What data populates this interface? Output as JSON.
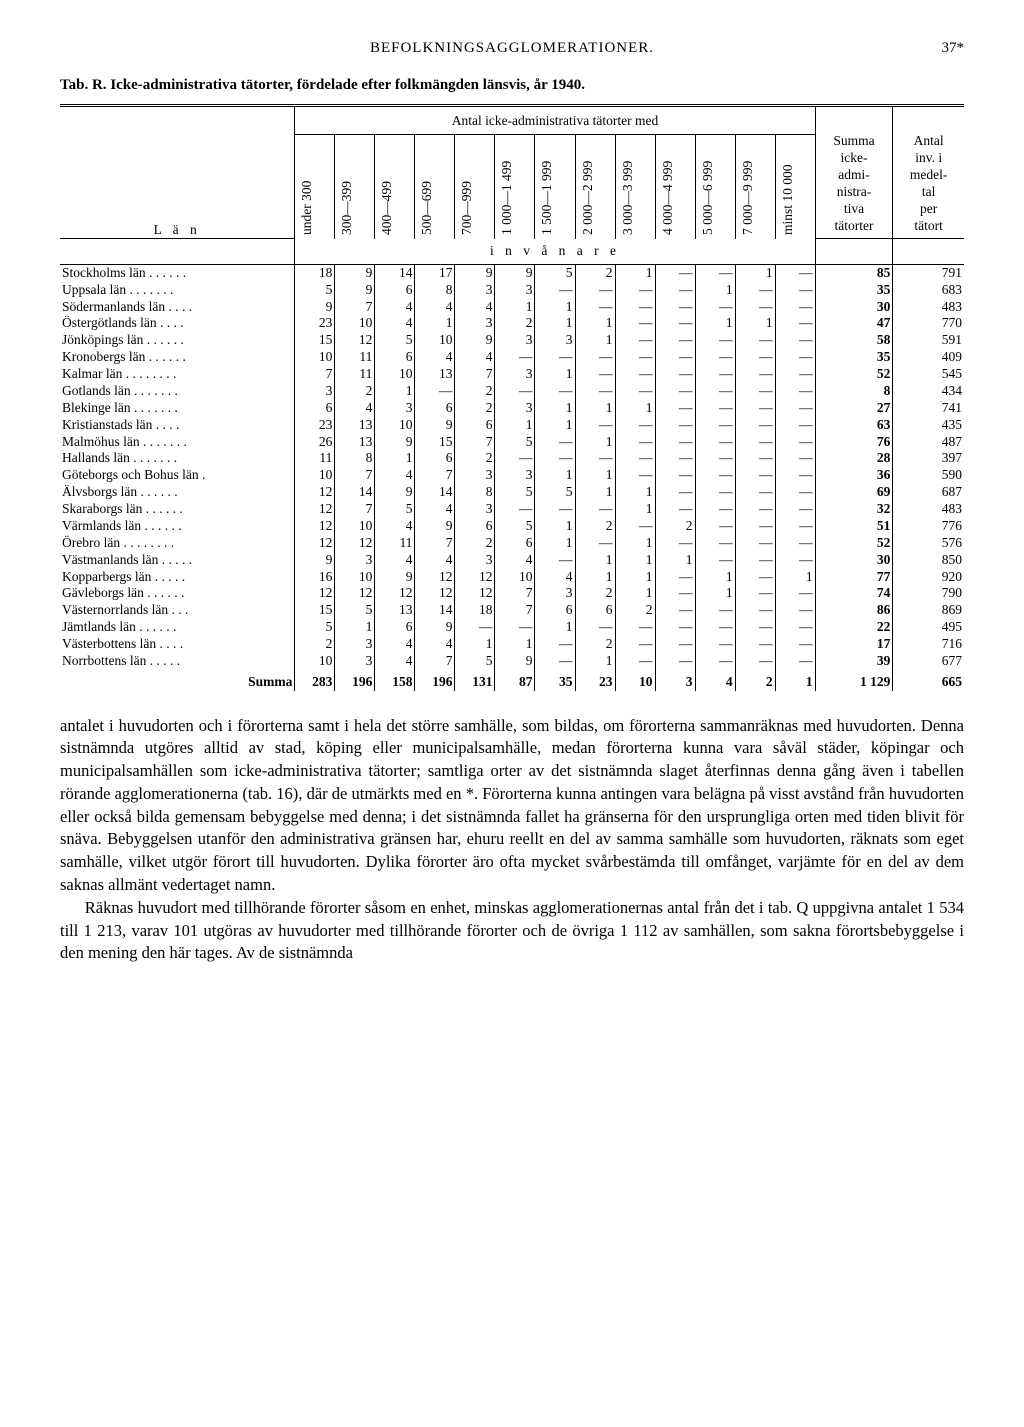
{
  "header": {
    "running_title": "BEFOLKNINGSAGGLOMERATIONER.",
    "page_number": "37*"
  },
  "caption": {
    "label": "Tab. R.",
    "text": "Icke-administrativa tätorter, fördelade efter folkmängden länsvis, år 1940."
  },
  "table": {
    "stub_header": "L ä n",
    "span_header": "Antal icke-administrativa tätorter med",
    "invanare_label": "i n v å n a r e",
    "column_headers": [
      "under 300",
      "300—399",
      "400—499",
      "500—699",
      "700—999",
      "1 000—1 499",
      "1 500—1 999",
      "2 000—2 999",
      "3 000—3 999",
      "4 000—4 999",
      "5 000—6 999",
      "7 000—9 999",
      "minst 10 000"
    ],
    "sum_header_lines": [
      "Summa",
      "icke-",
      "admi-",
      "nistra-",
      "tiva",
      "tätorter"
    ],
    "avg_header_lines": [
      "Antal",
      "inv. i",
      "medel-",
      "tal",
      "per",
      "tätort"
    ],
    "rows": [
      {
        "lan": "Stockholms län",
        "v": [
          "18",
          "9",
          "14",
          "17",
          "9",
          "9",
          "5",
          "2",
          "1",
          "—",
          "—",
          "1",
          "—"
        ],
        "sum": "85",
        "avg": "791"
      },
      {
        "lan": "Uppsala län",
        "v": [
          "5",
          "9",
          "6",
          "8",
          "3",
          "3",
          "—",
          "—",
          "—",
          "—",
          "1",
          "—",
          "—"
        ],
        "sum": "35",
        "avg": "683"
      },
      {
        "lan": "Södermanlands län",
        "v": [
          "9",
          "7",
          "4",
          "4",
          "4",
          "1",
          "1",
          "—",
          "—",
          "—",
          "—",
          "—",
          "—"
        ],
        "sum": "30",
        "avg": "483"
      },
      {
        "lan": "Östergötlands län",
        "v": [
          "23",
          "10",
          "4",
          "1",
          "3",
          "2",
          "1",
          "1",
          "—",
          "—",
          "1",
          "1",
          "—"
        ],
        "sum": "47",
        "avg": "770"
      },
      {
        "lan": "Jönköpings län",
        "v": [
          "15",
          "12",
          "5",
          "10",
          "9",
          "3",
          "3",
          "1",
          "—",
          "—",
          "—",
          "—",
          "—"
        ],
        "sum": "58",
        "avg": "591"
      },
      {
        "lan": "Kronobergs län",
        "v": [
          "10",
          "11",
          "6",
          "4",
          "4",
          "—",
          "—",
          "—",
          "—",
          "—",
          "—",
          "—",
          "—"
        ],
        "sum": "35",
        "avg": "409"
      },
      {
        "lan": "Kalmar län",
        "v": [
          "7",
          "11",
          "10",
          "13",
          "7",
          "3",
          "1",
          "—",
          "—",
          "—",
          "—",
          "—",
          "—"
        ],
        "sum": "52",
        "avg": "545"
      },
      {
        "lan": "Gotlands län",
        "v": [
          "3",
          "2",
          "1",
          "—",
          "2",
          "—",
          "—",
          "—",
          "—",
          "—",
          "—",
          "—",
          "—"
        ],
        "sum": "8",
        "avg": "434"
      },
      {
        "lan": "Blekinge län",
        "v": [
          "6",
          "4",
          "3",
          "6",
          "2",
          "3",
          "1",
          "1",
          "1",
          "—",
          "—",
          "—",
          "—"
        ],
        "sum": "27",
        "avg": "741"
      },
      {
        "lan": "Kristianstads län",
        "v": [
          "23",
          "13",
          "10",
          "9",
          "6",
          "1",
          "1",
          "—",
          "—",
          "—",
          "—",
          "—",
          "—"
        ],
        "sum": "63",
        "avg": "435"
      },
      {
        "lan": "Malmöhus län",
        "v": [
          "26",
          "13",
          "9",
          "15",
          "7",
          "5",
          "—",
          "1",
          "—",
          "—",
          "—",
          "—",
          "—"
        ],
        "sum": "76",
        "avg": "487"
      },
      {
        "lan": "Hallands län",
        "v": [
          "11",
          "8",
          "1",
          "6",
          "2",
          "—",
          "—",
          "—",
          "—",
          "—",
          "—",
          "—",
          "—"
        ],
        "sum": "28",
        "avg": "397"
      },
      {
        "lan": "Göteborgs och Bohus län",
        "v": [
          "10",
          "7",
          "4",
          "7",
          "3",
          "3",
          "1",
          "1",
          "—",
          "—",
          "—",
          "—",
          "—"
        ],
        "sum": "36",
        "avg": "590"
      },
      {
        "lan": "Älvsborgs län",
        "v": [
          "12",
          "14",
          "9",
          "14",
          "8",
          "5",
          "5",
          "1",
          "1",
          "—",
          "—",
          "—",
          "—"
        ],
        "sum": "69",
        "avg": "687"
      },
      {
        "lan": "Skaraborgs län",
        "v": [
          "12",
          "7",
          "5",
          "4",
          "3",
          "—",
          "—",
          "—",
          "1",
          "—",
          "—",
          "—",
          "—"
        ],
        "sum": "32",
        "avg": "483"
      },
      {
        "lan": "Värmlands län",
        "v": [
          "12",
          "10",
          "4",
          "9",
          "6",
          "5",
          "1",
          "2",
          "—",
          "2",
          "—",
          "—",
          "—"
        ],
        "sum": "51",
        "avg": "776"
      },
      {
        "lan": "Örebro län",
        "v": [
          "12",
          "12",
          "11",
          "7",
          "2",
          "6",
          "1",
          "—",
          "1",
          "—",
          "—",
          "—",
          "—"
        ],
        "sum": "52",
        "avg": "576"
      },
      {
        "lan": "Västmanlands län",
        "v": [
          "9",
          "3",
          "4",
          "4",
          "3",
          "4",
          "—",
          "1",
          "1",
          "1",
          "—",
          "—",
          "—"
        ],
        "sum": "30",
        "avg": "850"
      },
      {
        "lan": "Kopparbergs län",
        "v": [
          "16",
          "10",
          "9",
          "12",
          "12",
          "10",
          "4",
          "1",
          "1",
          "—",
          "1",
          "—",
          "1"
        ],
        "sum": "77",
        "avg": "920"
      },
      {
        "lan": "Gävleborgs län",
        "v": [
          "12",
          "12",
          "12",
          "12",
          "12",
          "7",
          "3",
          "2",
          "1",
          "—",
          "1",
          "—",
          "—"
        ],
        "sum": "74",
        "avg": "790"
      },
      {
        "lan": "Västernorrlands län",
        "v": [
          "15",
          "5",
          "13",
          "14",
          "18",
          "7",
          "6",
          "6",
          "2",
          "—",
          "—",
          "—",
          "—"
        ],
        "sum": "86",
        "avg": "869"
      },
      {
        "lan": "Jämtlands län",
        "v": [
          "5",
          "1",
          "6",
          "9",
          "—",
          "—",
          "1",
          "—",
          "—",
          "—",
          "—",
          "—",
          "—"
        ],
        "sum": "22",
        "avg": "495"
      },
      {
        "lan": "Västerbottens län",
        "v": [
          "2",
          "3",
          "4",
          "4",
          "1",
          "1",
          "—",
          "2",
          "—",
          "—",
          "—",
          "—",
          "—"
        ],
        "sum": "17",
        "avg": "716"
      },
      {
        "lan": "Norrbottens län",
        "v": [
          "10",
          "3",
          "4",
          "7",
          "5",
          "9",
          "—",
          "1",
          "—",
          "—",
          "—",
          "—",
          "—"
        ],
        "sum": "39",
        "avg": "677"
      }
    ],
    "totals": {
      "label": "Summa",
      "v": [
        "283",
        "196",
        "158",
        "196",
        "131",
        "87",
        "35",
        "23",
        "10",
        "3",
        "4",
        "2",
        "1"
      ],
      "sum": "1 129",
      "avg": "665"
    }
  },
  "paragraphs": [
    "antalet i huvudorten och i förorterna samt i hela det större samhälle, som bildas, om förorterna sammanräknas med huvudorten. Denna sistnämnda utgöres alltid av stad, köping eller municipalsamhälle, medan förorterna kunna vara såväl städer, köpingar och municipalsamhällen som icke-administrativa tätorter; samtliga orter av det sistnämnda slaget återfinnas denna gång även i tabellen rörande agglomerationerna (tab. 16), där de utmärkts med en *. Förorterna kunna antingen vara belägna på visst avstånd från huvudorten eller också bilda gemensam bebyggelse med denna; i det sistnämnda fallet ha gränserna för den ursprungliga orten med tiden blivit för snäva. Bebyggelsen utanför den administrativa gränsen har, ehuru reellt en del av samma samhälle som huvudorten, räknats som eget samhälle, vilket utgör förort till huvudorten. Dylika förorter äro ofta mycket svårbestämda till omfånget, varjämte för en del av dem saknas allmänt vedertaget namn.",
    "Räknas huvudort med tillhörande förorter såsom en enhet, minskas agglomerationernas antal från det i tab. Q uppgivna antalet 1 534 till 1 213, varav 101 utgöras av huvudorter med tillhörande förorter och de övriga 1 112 av samhällen, som sakna förortsbebyggelse i den mening den här tages. Av de sistnämnda"
  ]
}
